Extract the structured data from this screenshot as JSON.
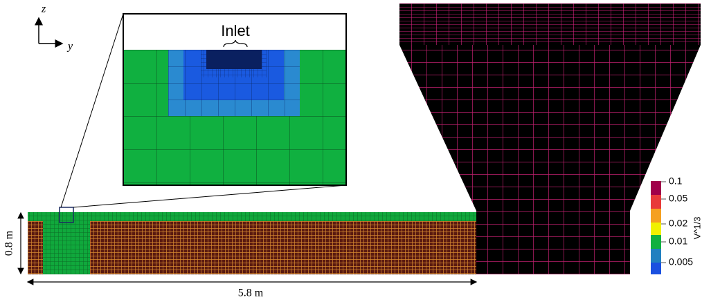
{
  "axes": {
    "z": "z",
    "y": "y"
  },
  "inset": {
    "label": "Inlet"
  },
  "dimensions": {
    "height": "0.8 m",
    "length": "5.8 m"
  },
  "colorbar": {
    "title": "V^1/3",
    "ticks": [
      "0.1",
      "0.05",
      "0.02",
      "0.01",
      "0.005"
    ]
  }
}
